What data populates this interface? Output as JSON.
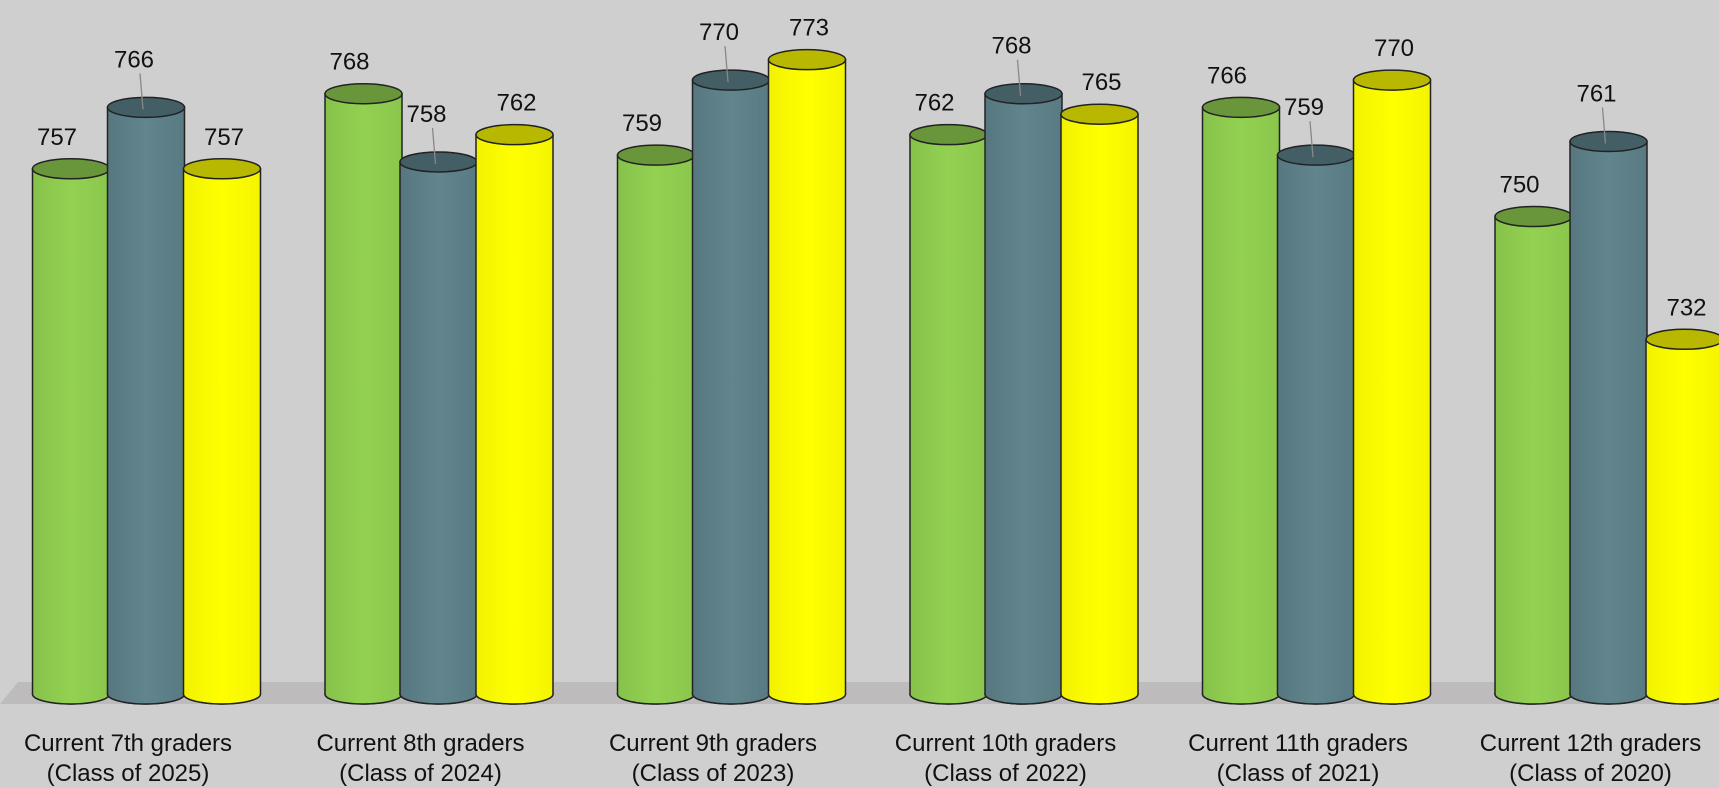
{
  "chart_data": {
    "type": "bar",
    "categories": [
      [
        "Current 7th graders",
        "(Class of 2025)"
      ],
      [
        "Current 8th graders",
        "(Class of 2024)"
      ],
      [
        "Current 9th graders",
        "(Class of 2023)"
      ],
      [
        "Current 10th graders",
        "(Class of 2022)"
      ],
      [
        "Current 11th graders",
        "(Class of 2021)"
      ],
      [
        "Current 12th graders",
        "(Class of 2020)"
      ]
    ],
    "series": [
      {
        "color": "#92d050",
        "values": [
          757,
          768,
          759,
          762,
          766,
          750
        ]
      },
      {
        "color": "#5f838c",
        "values": [
          766,
          758,
          770,
          768,
          759,
          761
        ]
      },
      {
        "color": "#ffff00",
        "values": [
          757,
          762,
          773,
          765,
          770,
          732
        ]
      }
    ],
    "title": "",
    "xlabel": "",
    "ylabel": "",
    "ylim": [
      680,
      775
    ],
    "grid": false,
    "legend": "none",
    "style": "3d-cylinder"
  }
}
